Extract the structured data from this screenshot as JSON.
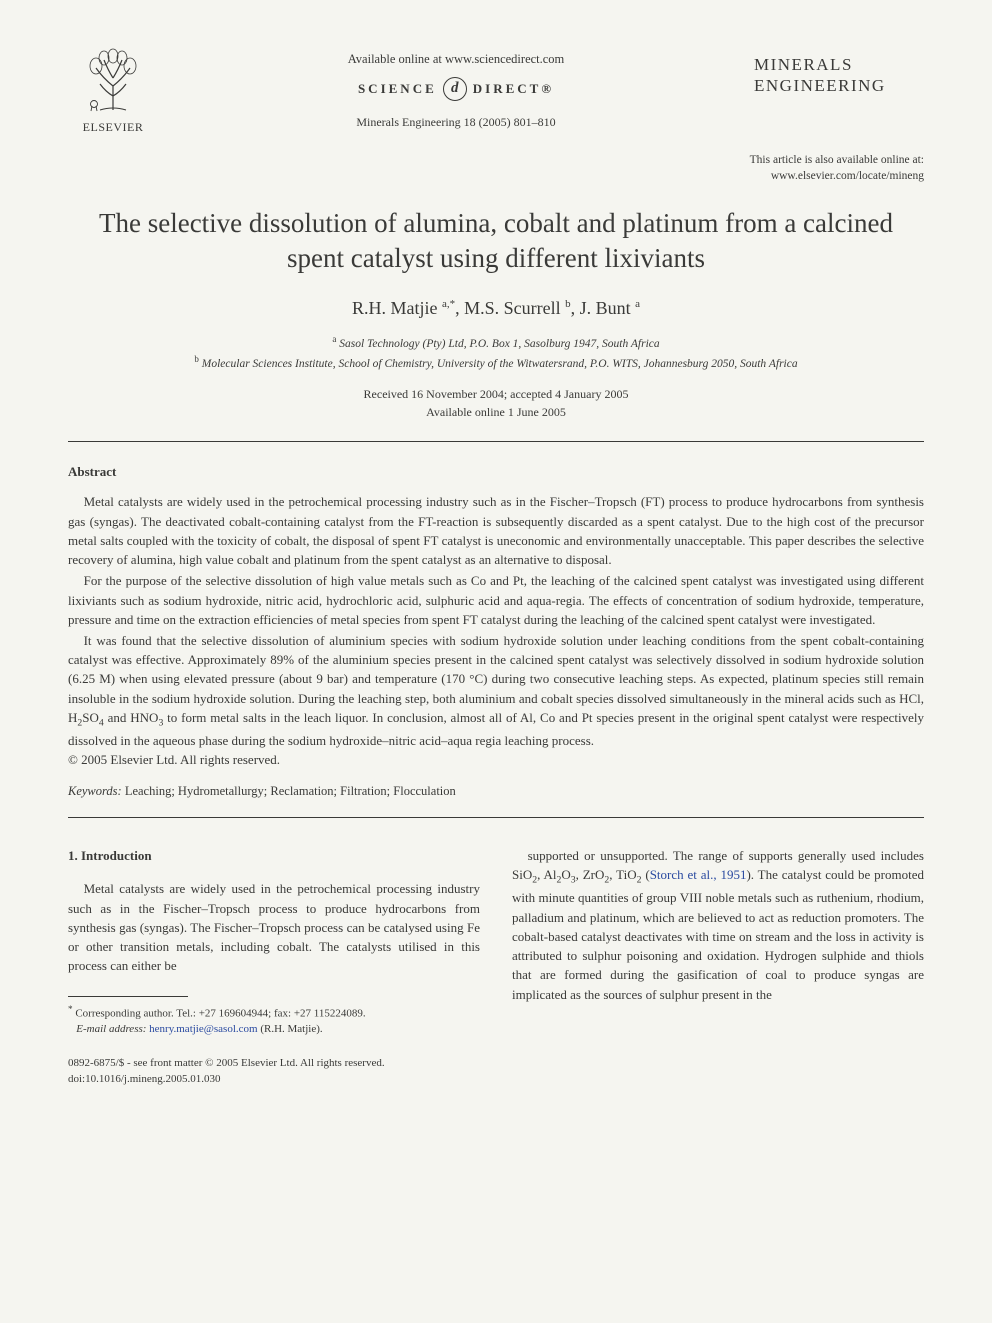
{
  "header": {
    "publisher_label": "ELSEVIER",
    "available_line": "Available online at www.sciencedirect.com",
    "sd_left": "SCIENCE",
    "sd_symbol": "d",
    "sd_right": "DIRECT®",
    "citation": "Minerals Engineering 18 (2005) 801–810",
    "journal_name_l1": "MINERALS",
    "journal_name_l2": "ENGINEERING",
    "also_online_l1": "This article is also available online at:",
    "also_online_l2": "www.elsevier.com/locate/mineng"
  },
  "article": {
    "title": "The selective dissolution of alumina, cobalt and platinum from a calcined spent catalyst using different lixiviants",
    "authors_html": "R.H. Matjie <sup>a,*</sup>, M.S. Scurrell <sup>b</sup>, J. Bunt <sup>a</sup>",
    "affiliations": [
      "<sup>a</sup> Sasol Technology (Pty) Ltd, P.O. Box 1, Sasolburg 1947, South Africa",
      "<sup>b</sup> Molecular Sciences Institute, School of Chemistry, University of the Witwatersrand, P.O. WITS, Johannesburg 2050, South Africa"
    ],
    "dates_l1": "Received 16 November 2004; accepted 4 January 2005",
    "dates_l2": "Available online 1 June 2005"
  },
  "abstract": {
    "heading": "Abstract",
    "paragraphs": [
      "Metal catalysts are widely used in the petrochemical processing industry such as in the Fischer–Tropsch (FT) process to produce hydrocarbons from synthesis gas (syngas). The deactivated cobalt-containing catalyst from the FT-reaction is subsequently discarded as a spent catalyst. Due to the high cost of the precursor metal salts coupled with the toxicity of cobalt, the disposal of spent FT catalyst is uneconomic and environmentally unacceptable. This paper describes the selective recovery of alumina, high value cobalt and platinum from the spent catalyst as an alternative to disposal.",
      "For the purpose of the selective dissolution of high value metals such as Co and Pt, the leaching of the calcined spent catalyst was investigated using different lixiviants such as sodium hydroxide, nitric acid, hydrochloric acid, sulphuric acid and aqua-regia. The effects of concentration of sodium hydroxide, temperature, pressure and time on the extraction efficiencies of metal species from spent FT catalyst during the leaching of the calcined spent catalyst were investigated.",
      "It was found that the selective dissolution of aluminium species with sodium hydroxide solution under leaching conditions from the spent cobalt-containing catalyst was effective. Approximately 89% of the aluminium species present in the calcined spent catalyst was selectively dissolved in sodium hydroxide solution (6.25 M) when using elevated pressure (about 9 bar) and temperature (170 °C) during two consecutive leaching steps. As expected, platinum species still remain insoluble in the sodium hydroxide solution. During the leaching step, both aluminium and cobalt species dissolved simultaneously in the mineral acids such as HCl, H<sub>2</sub>SO<sub>4</sub> and HNO<sub>3</sub> to form metal salts in the leach liquor. In conclusion, almost all of Al, Co and Pt species present in the original spent catalyst were respectively dissolved in the aqueous phase during the sodium hydroxide–nitric acid–aqua regia leaching process."
    ],
    "copyright": "© 2005 Elsevier Ltd. All rights reserved."
  },
  "keywords": {
    "label": "Keywords:",
    "list": "Leaching; Hydrometallurgy; Reclamation; Filtration; Flocculation"
  },
  "body": {
    "section_number": "1.",
    "section_title": "Introduction",
    "col1_p1": "Metal catalysts are widely used in the petrochemical processing industry such as in the Fischer–Tropsch process to produce hydrocarbons from synthesis gas (syngas). The Fischer–Tropsch process can be catalysed using Fe or other transition metals, including cobalt. The catalysts utilised in this process can either be",
    "col2_p1_pre": "supported or unsupported. The range of supports generally used includes SiO<sub>2</sub>, Al<sub>2</sub>O<sub>3</sub>, ZrO<sub>2</sub>, TiO<sub>2</sub> (",
    "col2_ref": "Storch et al., 1951",
    "col2_p1_post": "). The catalyst could be promoted with minute quantities of group VIII noble metals such as ruthenium, rhodium, palladium and platinum, which are believed to act as reduction promoters. The cobalt-based catalyst deactivates with time on stream and the loss in activity is attributed to sulphur poisoning and oxidation. Hydrogen sulphide and thiols that are formed during the gasification of coal to produce syngas are implicated as the sources of sulphur present in the"
  },
  "footnote": {
    "corr": "Corresponding author. Tel.: +27 169604944; fax: +27 115224089.",
    "email_label": "E-mail address:",
    "email": "henry.matjie@sasol.com",
    "email_paren": "(R.H. Matjie)."
  },
  "footer": {
    "line1": "0892-6875/$ - see front matter © 2005 Elsevier Ltd. All rights reserved.",
    "line2": "doi:10.1016/j.mineng.2005.01.030"
  },
  "colors": {
    "text": "#3a3a38",
    "link": "#2a4aa0",
    "background": "#f5f5f0"
  }
}
